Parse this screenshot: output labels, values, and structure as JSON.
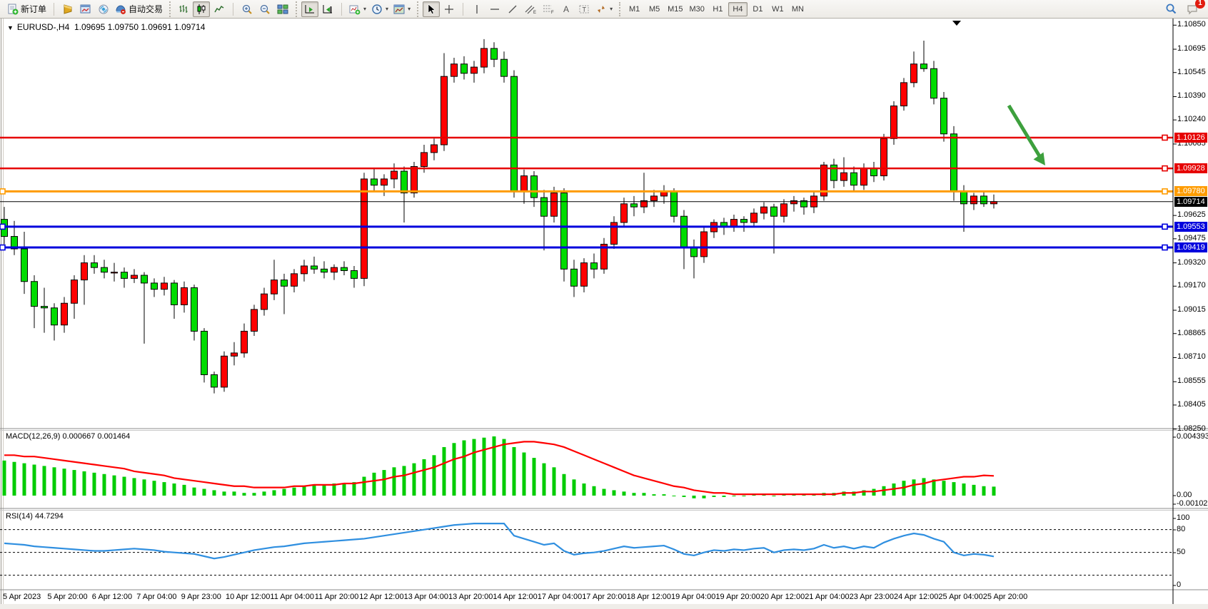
{
  "toolbar": {
    "new_order": "新订单",
    "autotrading": "自动交易",
    "channel_letter": "E",
    "fibo_letter": "F",
    "text_letter": "A",
    "label_letter": "T",
    "timeframes": [
      "M1",
      "M5",
      "M15",
      "M30",
      "H1",
      "H4",
      "D1",
      "W1",
      "MN"
    ],
    "active_timeframe": "H4",
    "notification_badge": "1"
  },
  "chart": {
    "title_symbol": "EURUSD-,H4",
    "title_ohlc": "1.09695 1.09750 1.09691 1.09714",
    "current_price": "1.09714",
    "price_ticks": [
      "1.10850",
      "1.10695",
      "1.10545",
      "1.10390",
      "1.10240",
      "1.10085",
      "1.09625",
      "1.09475",
      "1.09320",
      "1.09170",
      "1.09015",
      "1.08865",
      "1.08710",
      "1.08555",
      "1.08405",
      "1.08250"
    ],
    "price_tags": [
      {
        "value": "1.10126",
        "price": 1.10126,
        "color": "#e60000"
      },
      {
        "value": "1.09928",
        "price": 1.09928,
        "color": "#e60000"
      },
      {
        "value": "1.09780",
        "price": 1.0978,
        "color": "#ff9c00"
      },
      {
        "value": "1.09714",
        "price": 1.09714,
        "color": "#000000"
      },
      {
        "value": "1.09553",
        "price": 1.09553,
        "color": "#0000dd"
      },
      {
        "value": "1.09419",
        "price": 1.09419,
        "color": "#0000dd"
      }
    ],
    "hlines": [
      {
        "price": 1.10126,
        "color": "#e60000",
        "width": 2.5
      },
      {
        "price": 1.09928,
        "color": "#e60000",
        "width": 2.5
      },
      {
        "price": 1.0978,
        "color": "#ff9c00",
        "width": 3
      },
      {
        "price": 1.09553,
        "color": "#0000dd",
        "width": 3
      },
      {
        "price": 1.09419,
        "color": "#0000dd",
        "width": 3
      },
      {
        "price": 1.09714,
        "color": "#000000",
        "width": 1
      }
    ],
    "date_labels": [
      "5 Apr 2023",
      "5 Apr 20:00",
      "6 Apr 12:00",
      "7 Apr 04:00",
      "9 Apr 23:00",
      "10 Apr 12:00",
      "11 Apr 04:00",
      "11 Apr 20:00",
      "12 Apr 12:00",
      "13 Apr 04:00",
      "13 Apr 20:00",
      "14 Apr 12:00",
      "17 Apr 04:00",
      "17 Apr 20:00",
      "18 Apr 12:00",
      "19 Apr 04:00",
      "19 Apr 20:00",
      "20 Apr 12:00",
      "21 Apr 04:00",
      "23 Apr 23:00",
      "24 Apr 12:00",
      "25 Apr 04:00",
      "25 Apr 20:00"
    ]
  },
  "indicators": {
    "macd_label": "MACD(12,26,9) 0.000667 0.001464",
    "macd_axis": [
      "0.004393",
      "0.00",
      "-0.001021"
    ],
    "rsi_label": "RSI(14) 44.7294",
    "rsi_axis": [
      "100",
      "80",
      "50",
      "0"
    ],
    "rsi_levels": [
      80,
      50,
      20
    ]
  },
  "chart_data": {
    "type": "candlestick",
    "symbol": "EURUSD-",
    "timeframe": "H4",
    "bull_color": "#ff0000",
    "bear_color": "#00dc00",
    "price_range": [
      1.0825,
      1.1085
    ],
    "candles": [
      [
        1.096,
        1.0968,
        1.0944,
        1.0949
      ],
      [
        1.0949,
        1.0959,
        1.0937,
        1.0941
      ],
      [
        1.0941,
        1.0952,
        1.0912,
        1.092
      ],
      [
        1.092,
        1.0924,
        1.089,
        1.0904
      ],
      [
        1.0904,
        1.0916,
        1.0887,
        1.0903
      ],
      [
        1.0903,
        1.0906,
        1.0882,
        1.0892
      ],
      [
        1.0892,
        1.091,
        1.0887,
        1.0906
      ],
      [
        1.0906,
        1.0924,
        1.0896,
        1.0921
      ],
      [
        1.0921,
        1.0937,
        1.0905,
        1.0932
      ],
      [
        1.0932,
        1.0937,
        1.0925,
        1.0929
      ],
      [
        1.0929,
        1.0934,
        1.0922,
        1.0926
      ],
      [
        1.0926,
        1.0932,
        1.092,
        1.0926
      ],
      [
        1.0926,
        1.0929,
        1.0916,
        1.0922
      ],
      [
        1.0922,
        1.0928,
        1.0919,
        1.0924
      ],
      [
        1.0924,
        1.0926,
        1.088,
        1.0919
      ],
      [
        1.0919,
        1.0922,
        1.091,
        1.0915
      ],
      [
        1.0915,
        1.0923,
        1.0911,
        1.0919
      ],
      [
        1.0919,
        1.0921,
        1.0896,
        1.0905
      ],
      [
        1.0905,
        1.092,
        1.09,
        1.0916
      ],
      [
        1.0916,
        1.0918,
        1.0882,
        1.0888
      ],
      [
        1.0888,
        1.089,
        1.0855,
        1.086
      ],
      [
        1.086,
        1.0862,
        1.0848,
        1.0852
      ],
      [
        1.0852,
        1.0875,
        1.0849,
        1.0872
      ],
      [
        1.0872,
        1.0881,
        1.0866,
        1.0874
      ],
      [
        1.0874,
        1.0893,
        1.0871,
        1.0888
      ],
      [
        1.0888,
        1.0905,
        1.0885,
        1.0902
      ],
      [
        1.0902,
        1.0916,
        1.0898,
        1.0912
      ],
      [
        1.0912,
        1.0934,
        1.0908,
        1.0921
      ],
      [
        1.0921,
        1.0925,
        1.0899,
        1.0917
      ],
      [
        1.0917,
        1.0928,
        1.0913,
        1.0925
      ],
      [
        1.0925,
        1.0934,
        1.092,
        1.093
      ],
      [
        1.093,
        1.0936,
        1.0925,
        1.0928
      ],
      [
        1.0928,
        1.0933,
        1.0922,
        1.0926
      ],
      [
        1.0926,
        1.0931,
        1.0921,
        1.0929
      ],
      [
        1.0929,
        1.0933,
        1.0924,
        1.0927
      ],
      [
        1.0927,
        1.093,
        1.0916,
        1.0922
      ],
      [
        1.0922,
        1.099,
        1.0917,
        1.0986
      ],
      [
        1.0986,
        1.0993,
        1.0978,
        1.0982
      ],
      [
        1.0982,
        1.0989,
        1.0975,
        1.0986
      ],
      [
        1.0986,
        1.0996,
        1.098,
        1.0991
      ],
      [
        1.0991,
        1.0994,
        1.0958,
        1.0977
      ],
      [
        1.0977,
        1.0997,
        1.0974,
        1.0994
      ],
      [
        1.0994,
        1.1008,
        1.099,
        1.1003
      ],
      [
        1.1003,
        1.1012,
        1.0998,
        1.1008
      ],
      [
        1.1008,
        1.1067,
        1.1004,
        1.1052
      ],
      [
        1.1052,
        1.1064,
        1.1048,
        1.106
      ],
      [
        1.106,
        1.1065,
        1.105,
        1.1054
      ],
      [
        1.1054,
        1.1062,
        1.1048,
        1.1058
      ],
      [
        1.1058,
        1.1076,
        1.1054,
        1.107
      ],
      [
        1.107,
        1.1074,
        1.1058,
        1.1063
      ],
      [
        1.1063,
        1.1068,
        1.1048,
        1.1052
      ],
      [
        1.1052,
        1.1056,
        1.0974,
        1.0978
      ],
      [
        1.0978,
        1.0992,
        1.097,
        1.0988
      ],
      [
        1.0988,
        1.0991,
        1.0968,
        1.0974
      ],
      [
        1.0974,
        1.0979,
        1.094,
        1.0962
      ],
      [
        1.0962,
        1.0981,
        1.0958,
        1.0977
      ],
      [
        1.0977,
        1.098,
        1.092,
        1.0928
      ],
      [
        1.0928,
        1.0934,
        1.091,
        1.0917
      ],
      [
        1.0917,
        1.0935,
        1.0913,
        1.0932
      ],
      [
        1.0932,
        1.0938,
        1.0922,
        1.0928
      ],
      [
        1.0928,
        1.0948,
        1.0925,
        1.0944
      ],
      [
        1.0944,
        1.0962,
        1.0941,
        1.0958
      ],
      [
        1.0958,
        1.0974,
        1.0955,
        1.097
      ],
      [
        1.097,
        1.0975,
        1.0962,
        1.0968
      ],
      [
        1.0968,
        1.099,
        1.0964,
        1.0972
      ],
      [
        1.0972,
        1.0979,
        1.0968,
        1.0975
      ],
      [
        1.0975,
        1.0982,
        1.097,
        1.0978
      ],
      [
        1.0978,
        1.098,
        1.0958,
        1.0962
      ],
      [
        1.0962,
        1.0966,
        1.0928,
        1.0942
      ],
      [
        1.0942,
        1.0947,
        1.0922,
        1.0936
      ],
      [
        1.0936,
        1.0955,
        1.0932,
        1.0952
      ],
      [
        1.0952,
        1.096,
        1.0948,
        1.0958
      ],
      [
        1.0958,
        1.0961,
        1.095,
        1.0955
      ],
      [
        1.0955,
        1.0963,
        1.0952,
        1.096
      ],
      [
        1.096,
        1.0962,
        1.0952,
        1.0958
      ],
      [
        1.0958,
        1.0967,
        1.0955,
        1.0964
      ],
      [
        1.0964,
        1.0971,
        1.096,
        1.0968
      ],
      [
        1.0968,
        1.097,
        1.0938,
        1.0962
      ],
      [
        1.0962,
        1.0973,
        1.0958,
        1.097
      ],
      [
        1.097,
        1.0975,
        1.0965,
        1.0972
      ],
      [
        1.0972,
        1.0974,
        1.0963,
        1.0968
      ],
      [
        1.0968,
        1.0978,
        1.0964,
        1.0975
      ],
      [
        1.0975,
        1.0997,
        1.0972,
        1.0995
      ],
      [
        1.0995,
        1.0999,
        1.098,
        1.0985
      ],
      [
        1.0985,
        1.1,
        1.0981,
        1.099
      ],
      [
        1.099,
        1.0994,
        1.0978,
        1.0982
      ],
      [
        1.0982,
        1.0996,
        1.0979,
        1.0993
      ],
      [
        1.0993,
        1.0997,
        1.0984,
        1.0988
      ],
      [
        1.0988,
        1.1015,
        1.0985,
        1.1012
      ],
      [
        1.1012,
        1.1036,
        1.1008,
        1.1033
      ],
      [
        1.1033,
        1.1051,
        1.103,
        1.1048
      ],
      [
        1.1048,
        1.1068,
        1.1045,
        1.106
      ],
      [
        1.106,
        1.1075,
        1.1055,
        1.1057
      ],
      [
        1.1057,
        1.1062,
        1.1034,
        1.1038
      ],
      [
        1.1038,
        1.1042,
        1.101,
        1.1015
      ],
      [
        1.1015,
        1.102,
        1.0972,
        1.0978
      ],
      [
        1.0978,
        1.0982,
        1.0952,
        1.097
      ],
      [
        1.097,
        1.0977,
        1.0966,
        1.0975
      ],
      [
        1.0975,
        1.0978,
        1.0968,
        1.097
      ],
      [
        1.097,
        1.0976,
        1.0967,
        1.09714
      ]
    ],
    "macd": {
      "range": [
        -0.001021,
        0.004393
      ],
      "histogram": [
        0.0026,
        0.0025,
        0.0024,
        0.0023,
        0.0022,
        0.0021,
        0.002,
        0.0019,
        0.0018,
        0.0017,
        0.0016,
        0.0015,
        0.0014,
        0.0013,
        0.0012,
        0.0011,
        0.001,
        0.0009,
        0.0008,
        0.0006,
        0.0005,
        0.0004,
        0.0003,
        0.0003,
        0.0002,
        0.0002,
        0.0003,
        0.0004,
        0.0005,
        0.0006,
        0.0007,
        0.0008,
        0.0008,
        0.0009,
        0.0009,
        0.001,
        0.0014,
        0.0017,
        0.0019,
        0.0021,
        0.0022,
        0.0024,
        0.0027,
        0.003,
        0.0036,
        0.0039,
        0.0041,
        0.0042,
        0.0043,
        0.004393,
        0.0042,
        0.0036,
        0.0032,
        0.0028,
        0.0024,
        0.0021,
        0.0016,
        0.0012,
        0.0009,
        0.0007,
        0.0005,
        0.0004,
        0.0003,
        0.0002,
        0.0002,
        0.0001,
        0.0001,
        0.0,
        -0.0001,
        -0.0002,
        -0.0002,
        -0.0001,
        -0.0001,
        0.0,
        0.0,
        0.0001,
        0.0001,
        0.0,
        0.0001,
        0.0001,
        0.0001,
        0.0001,
        0.0002,
        0.0002,
        0.0003,
        0.0003,
        0.0004,
        0.0005,
        0.0007,
        0.0009,
        0.0011,
        0.0012,
        0.0013,
        0.0012,
        0.0011,
        0.001,
        0.0009,
        0.0008,
        0.0007,
        0.000667
      ],
      "signal": [
        0.003,
        0.003,
        0.0029,
        0.0029,
        0.0028,
        0.0027,
        0.0026,
        0.0025,
        0.0024,
        0.0023,
        0.0022,
        0.0021,
        0.002,
        0.0018,
        0.0017,
        0.0016,
        0.0015,
        0.0013,
        0.0012,
        0.0011,
        0.001,
        0.0009,
        0.0008,
        0.0007,
        0.0007,
        0.0006,
        0.0006,
        0.0006,
        0.0006,
        0.0007,
        0.0007,
        0.0008,
        0.0008,
        0.0008,
        0.0009,
        0.0009,
        0.001,
        0.0011,
        0.0012,
        0.0014,
        0.0015,
        0.0017,
        0.0019,
        0.0021,
        0.0024,
        0.0027,
        0.0029,
        0.0032,
        0.0034,
        0.0036,
        0.0038,
        0.0039,
        0.004,
        0.004,
        0.0039,
        0.0038,
        0.0036,
        0.0033,
        0.003,
        0.0027,
        0.0024,
        0.0021,
        0.0018,
        0.0015,
        0.0013,
        0.0011,
        0.0009,
        0.0007,
        0.0006,
        0.0004,
        0.0003,
        0.0002,
        0.0002,
        0.0001,
        0.0001,
        0.0001,
        0.0001,
        0.0001,
        0.0001,
        0.0001,
        0.0001,
        0.0001,
        0.0001,
        0.0001,
        0.0002,
        0.0002,
        0.0003,
        0.0003,
        0.0004,
        0.0005,
        0.0006,
        0.0008,
        0.0009,
        0.0011,
        0.0012,
        0.0013,
        0.0014,
        0.0014,
        0.0015,
        0.001464
      ]
    },
    "rsi": {
      "range": [
        0,
        100
      ],
      "values": [
        62,
        61,
        60,
        58,
        57,
        56,
        55,
        54,
        53,
        52,
        52,
        53,
        54,
        55,
        54,
        53,
        51,
        50,
        49,
        48,
        45,
        42,
        44,
        47,
        50,
        53,
        55,
        57,
        58,
        60,
        62,
        63,
        64,
        65,
        66,
        67,
        68,
        70,
        72,
        74,
        76,
        78,
        80,
        82,
        84,
        86,
        87,
        88,
        88,
        88,
        88,
        72,
        68,
        64,
        60,
        62,
        52,
        47,
        49,
        50,
        52,
        55,
        58,
        56,
        57,
        58,
        59,
        54,
        48,
        46,
        50,
        53,
        52,
        54,
        53,
        55,
        56,
        50,
        53,
        54,
        53,
        55,
        60,
        56,
        58,
        55,
        58,
        56,
        63,
        68,
        72,
        75,
        73,
        68,
        64,
        50,
        46,
        48,
        47,
        44.7294
      ]
    }
  },
  "annotations": {
    "arrow_color": "#3da03d",
    "arrow_direction": "down-right"
  }
}
